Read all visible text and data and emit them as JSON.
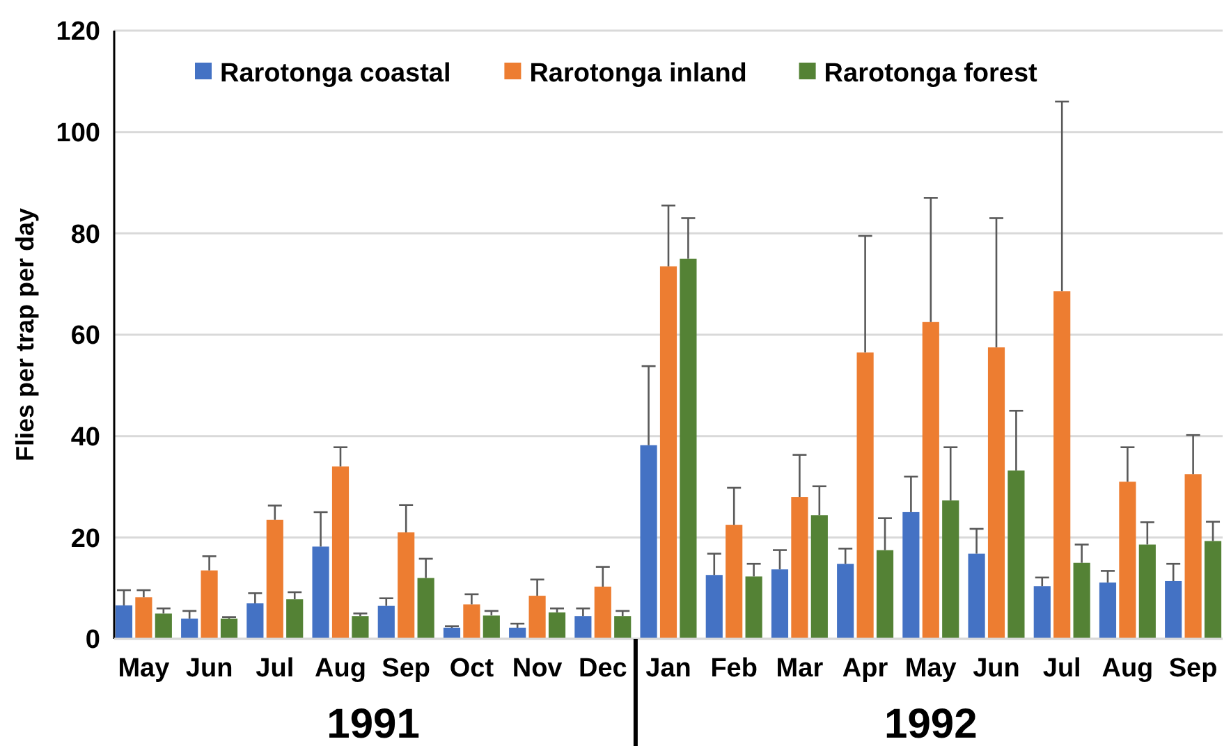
{
  "chart_data": {
    "type": "bar",
    "ylabel": "Flies per trap per day",
    "categories": [
      "May",
      "Jun",
      "Jul",
      "Aug",
      "Sep",
      "Oct",
      "Nov",
      "Dec",
      "Jan",
      "Feb",
      "Mar",
      "Apr",
      "May",
      "Jun",
      "Jul",
      "Aug",
      "Sep"
    ],
    "series": [
      {
        "name": "Rarotonga coastal",
        "color": "#4472c4",
        "values": [
          6.6,
          4,
          7,
          18.2,
          6.5,
          2.2,
          2.2,
          4.5,
          38.2,
          12.6,
          13.7,
          14.8,
          25,
          16.8,
          10.4,
          11.1,
          11.4
        ],
        "errors": [
          [
            6.6,
            9.6
          ],
          [
            4,
            5.5
          ],
          [
            7,
            9
          ],
          [
            18.2,
            25
          ],
          [
            6.5,
            8
          ],
          [
            2.2,
            2.5
          ],
          [
            2.2,
            3
          ],
          [
            4.5,
            6
          ],
          [
            38.2,
            53.8
          ],
          [
            12.6,
            16.8
          ],
          [
            13.7,
            17.5
          ],
          [
            14.8,
            17.8
          ],
          [
            25,
            32
          ],
          [
            16.8,
            21.7
          ],
          [
            10.4,
            12.1
          ],
          [
            11.1,
            13.4
          ],
          [
            11.4,
            14.8
          ]
        ]
      },
      {
        "name": "Rarotonga inland",
        "color": "#ed7d31",
        "values": [
          8.2,
          13.5,
          23.5,
          34,
          21,
          6.8,
          8.5,
          10.3,
          73.5,
          22.5,
          28,
          56.5,
          62.5,
          57.5,
          68.6,
          31,
          32.5
        ],
        "errors": [
          [
            8.2,
            9.6
          ],
          [
            13.5,
            16.3
          ],
          [
            23.5,
            26.3
          ],
          [
            34,
            37.8
          ],
          [
            21,
            26.4
          ],
          [
            6.8,
            8.8
          ],
          [
            8.5,
            11.7
          ],
          [
            10.3,
            14.2
          ],
          [
            73.5,
            85.5
          ],
          [
            22.5,
            29.8
          ],
          [
            28,
            36.3
          ],
          [
            56.5,
            79.5
          ],
          [
            62.5,
            87
          ],
          [
            57.5,
            83
          ],
          [
            68.6,
            106
          ],
          [
            31,
            37.8
          ],
          [
            32.5,
            40.2
          ]
        ]
      },
      {
        "name": "Rarotonga forest",
        "color": "#548235",
        "values": [
          5,
          4,
          7.8,
          4.5,
          12,
          4.6,
          5.2,
          4.5,
          75,
          12.3,
          24.4,
          17.5,
          27.3,
          33.2,
          15,
          18.6,
          19.3
        ],
        "errors": [
          [
            5,
            6
          ],
          [
            4,
            4.3
          ],
          [
            7.8,
            9.2
          ],
          [
            4.5,
            5
          ],
          [
            12,
            15.8
          ],
          [
            4.6,
            5.5
          ],
          [
            5.2,
            6
          ],
          [
            4.5,
            5.5
          ],
          [
            75,
            83
          ],
          [
            12.3,
            14.8
          ],
          [
            24.4,
            30.1
          ],
          [
            17.5,
            23.8
          ],
          [
            27.3,
            37.8
          ],
          [
            33.2,
            45
          ],
          [
            15,
            18.6
          ],
          [
            18.6,
            23
          ],
          [
            19.3,
            23.1
          ]
        ]
      }
    ],
    "ylim": [
      0,
      120
    ],
    "yticks": [
      0,
      20,
      40,
      60,
      80,
      100,
      120
    ],
    "grid": "y",
    "legend": "top",
    "annotations": [
      "1991",
      "1992"
    ]
  }
}
